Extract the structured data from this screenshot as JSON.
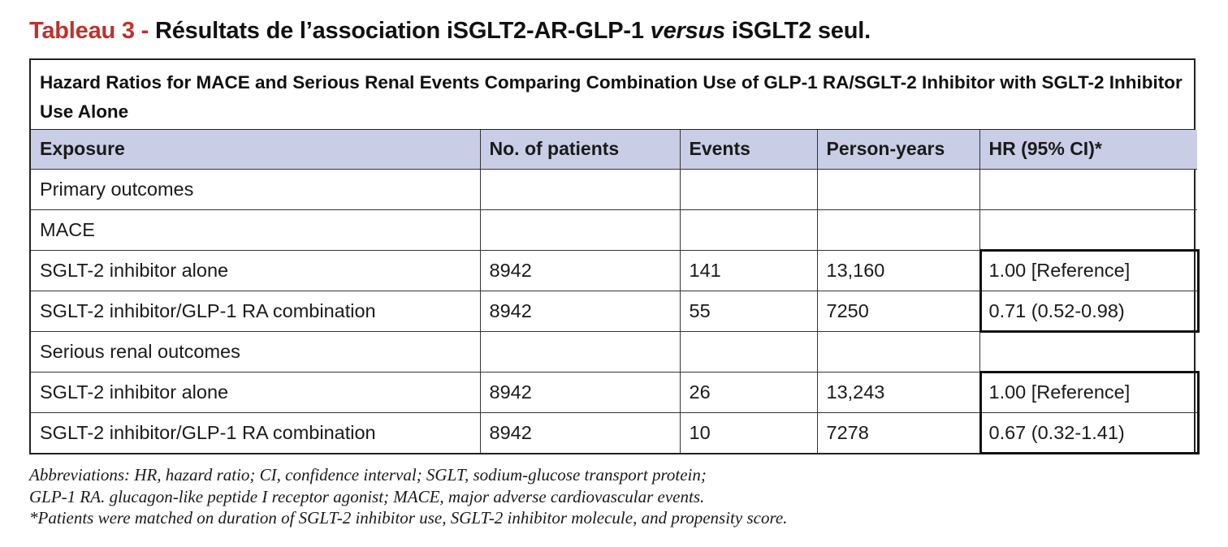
{
  "title": {
    "label": "Tableau 3 -",
    "text_before": " Résultats de l’association iSGLT2-AR-GLP-1 ",
    "italic": "versus",
    "text_after": " iSGLT2 seul."
  },
  "caption": "Hazard Ratios for MACE and Serious Renal Events Comparing Combination Use of GLP-1 RA/SGLT-2 Inhibitor with SGLT-2 Inhibitor Use Alone",
  "columns": [
    "Exposure",
    "No. of patients",
    "Events",
    "Person-years",
    "HR (95% CI)*"
  ],
  "rows": [
    [
      "Primary outcomes",
      "",
      "",
      "",
      ""
    ],
    [
      "MACE",
      "",
      "",
      "",
      ""
    ],
    [
      "SGLT-2 inhibitor alone",
      "8942",
      "141",
      "13,160",
      "1.00 [Reference]"
    ],
    [
      "SGLT-2 inhibitor/GLP-1 RA combination",
      "8942",
      "55",
      "7250",
      "0.71 (0.52-0.98)"
    ],
    [
      "Serious renal outcomes",
      "",
      "",
      "",
      ""
    ],
    [
      "SGLT-2 inhibitor alone",
      "8942",
      "26",
      "13,243",
      "1.00 [Reference]"
    ],
    [
      "SGLT-2 inhibitor/GLP-1 RA combination",
      "8942",
      "10",
      "7278",
      "0.67 (0.32-1.41)"
    ]
  ],
  "notes": [
    "Abbreviations: HR, hazard ratio; CI, confidence interval; SGLT, sodium-glucose transport protein;",
    "GLP-1 RA. glucagon-like peptide I receptor agonist; MACE, major adverse cardiovascular events.",
    "*Patients were matched on duration of SGLT-2 inhibitor use, SGLT-2 inhibitor molecule, and propensity score."
  ],
  "colors": {
    "title_label": "#c0302a",
    "header_bg": "#c9cee6",
    "border": "#222222"
  }
}
